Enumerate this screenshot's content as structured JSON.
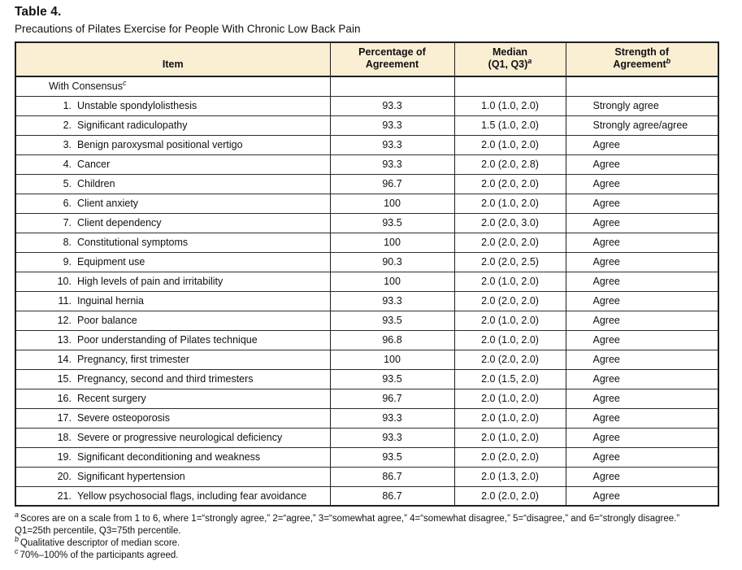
{
  "page": {
    "title": "Table 4.",
    "subtitle": "Precautions of Pilates Exercise for People With Chronic Low Back Pain"
  },
  "colors": {
    "header_bg": "#faeed3",
    "border": "#1f1f1f",
    "row_line": "#2e2e2e"
  },
  "table": {
    "headers": {
      "item": "Item",
      "pct_line1": "Percentage of",
      "pct_line2": "Agreement",
      "median_line1": "Median",
      "median_line2": "(Q1, Q3)",
      "median_sup": "a",
      "strength_line1": "Strength of",
      "strength_line2": "Agreement",
      "strength_sup": "b"
    },
    "section": {
      "label": "With Consensus",
      "sup": "c"
    },
    "rows": [
      {
        "num": "1.",
        "item": "Unstable spondylolisthesis",
        "pct": "93.3",
        "median": "1.0 (1.0, 2.0)",
        "strength": "Strongly agree"
      },
      {
        "num": "2.",
        "item": "Significant radiculopathy",
        "pct": "93.3",
        "median": "1.5 (1.0, 2.0)",
        "strength": "Strongly agree/agree"
      },
      {
        "num": "3.",
        "item": "Benign paroxysmal positional vertigo",
        "pct": "93.3",
        "median": "2.0 (1.0, 2.0)",
        "strength": "Agree"
      },
      {
        "num": "4.",
        "item": "Cancer",
        "pct": "93.3",
        "median": "2.0 (2.0, 2.8)",
        "strength": "Agree"
      },
      {
        "num": "5.",
        "item": "Children",
        "pct": "96.7",
        "median": "2.0 (2.0, 2.0)",
        "strength": "Agree"
      },
      {
        "num": "6.",
        "item": "Client anxiety",
        "pct": "100",
        "median": "2.0 (1.0, 2.0)",
        "strength": "Agree"
      },
      {
        "num": "7.",
        "item": "Client dependency",
        "pct": "93.5",
        "median": "2.0 (2.0, 3.0)",
        "strength": "Agree"
      },
      {
        "num": "8.",
        "item": "Constitutional symptoms",
        "pct": "100",
        "median": "2.0 (2.0, 2.0)",
        "strength": "Agree"
      },
      {
        "num": "9.",
        "item": "Equipment use",
        "pct": "90.3",
        "median": "2.0 (2.0, 2.5)",
        "strength": "Agree"
      },
      {
        "num": "10.",
        "item": "High levels of pain and irritability",
        "pct": "100",
        "median": "2.0 (1.0, 2.0)",
        "strength": "Agree"
      },
      {
        "num": "11.",
        "item": "Inguinal hernia",
        "pct": "93.3",
        "median": "2.0 (2.0, 2.0)",
        "strength": "Agree"
      },
      {
        "num": "12.",
        "item": "Poor balance",
        "pct": "93.5",
        "median": "2.0 (1.0, 2.0)",
        "strength": "Agree"
      },
      {
        "num": "13.",
        "item": "Poor understanding of Pilates technique",
        "pct": "96.8",
        "median": "2.0 (1.0, 2.0)",
        "strength": "Agree"
      },
      {
        "num": "14.",
        "item": "Pregnancy, first trimester",
        "pct": "100",
        "median": "2.0 (2.0, 2.0)",
        "strength": "Agree"
      },
      {
        "num": "15.",
        "item": "Pregnancy, second and third trimesters",
        "pct": "93.5",
        "median": "2.0 (1.5, 2.0)",
        "strength": "Agree"
      },
      {
        "num": "16.",
        "item": "Recent surgery",
        "pct": "96.7",
        "median": "2.0 (1.0, 2.0)",
        "strength": "Agree"
      },
      {
        "num": "17.",
        "item": "Severe osteoporosis",
        "pct": "93.3",
        "median": "2.0 (1.0, 2.0)",
        "strength": "Agree"
      },
      {
        "num": "18.",
        "item": "Severe or progressive neurological deficiency",
        "pct": "93.3",
        "median": "2.0 (1.0, 2.0)",
        "strength": "Agree"
      },
      {
        "num": "19.",
        "item": "Significant deconditioning and weakness",
        "pct": "93.5",
        "median": "2.0 (2.0, 2.0)",
        "strength": "Agree"
      },
      {
        "num": "20.",
        "item": "Significant hypertension",
        "pct": "86.7",
        "median": "2.0 (1.3, 2.0)",
        "strength": "Agree"
      },
      {
        "num": "21.",
        "item": "Yellow psychosocial flags, including fear avoidance",
        "pct": "86.7",
        "median": "2.0 (2.0, 2.0)",
        "strength": "Agree"
      }
    ]
  },
  "footnotes": [
    {
      "sup": "a",
      "text": "Scores are on a scale from 1 to 6, where 1=“strongly agree,” 2=“agree,” 3=“somewhat agree,” 4=“somewhat disagree,” 5=“disagree,” and 6=“strongly disagree.” Q1=25th percentile, Q3=75th percentile."
    },
    {
      "sup": "b",
      "text": "Qualitative descriptor of median score."
    },
    {
      "sup": "c",
      "text": "70%–100% of the participants agreed."
    }
  ]
}
